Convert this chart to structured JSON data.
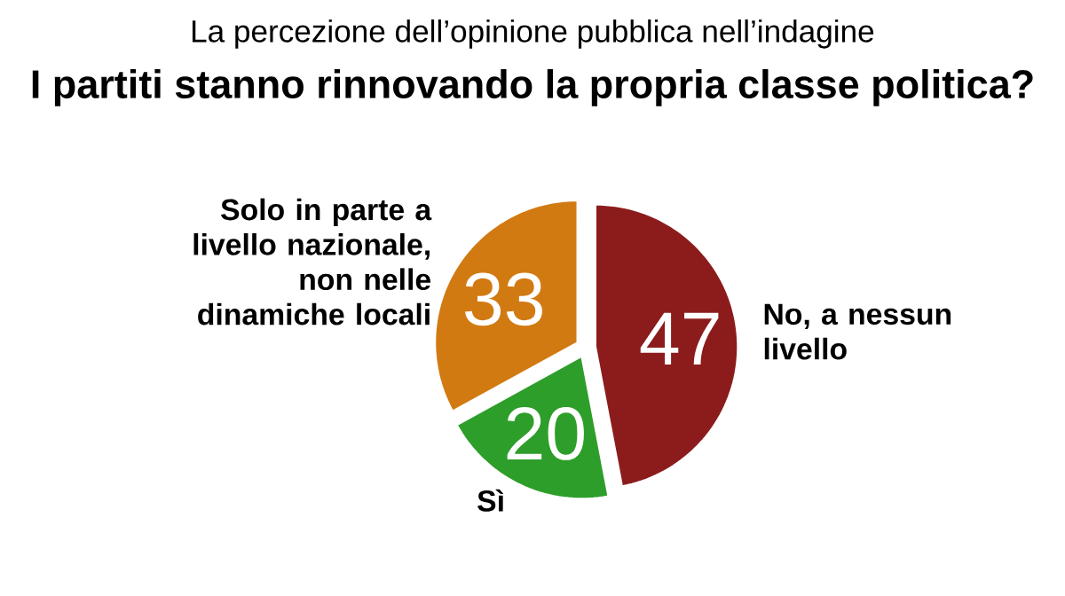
{
  "chart_data": {
    "type": "pie",
    "subtitle": "La percezione dell’opinione pubblica nell’indagine",
    "title": "I partiti stanno rinnovando la propria classe politica?",
    "categories": [
      "No, a nessun livello",
      "Sì",
      "Solo in parte a livello nazionale, non nelle dinamiche locali"
    ],
    "values": [
      47,
      20,
      33
    ],
    "colors": [
      "#8c1c1c",
      "#2e9e2a",
      "#d27a12"
    ],
    "data_labels": true
  }
}
